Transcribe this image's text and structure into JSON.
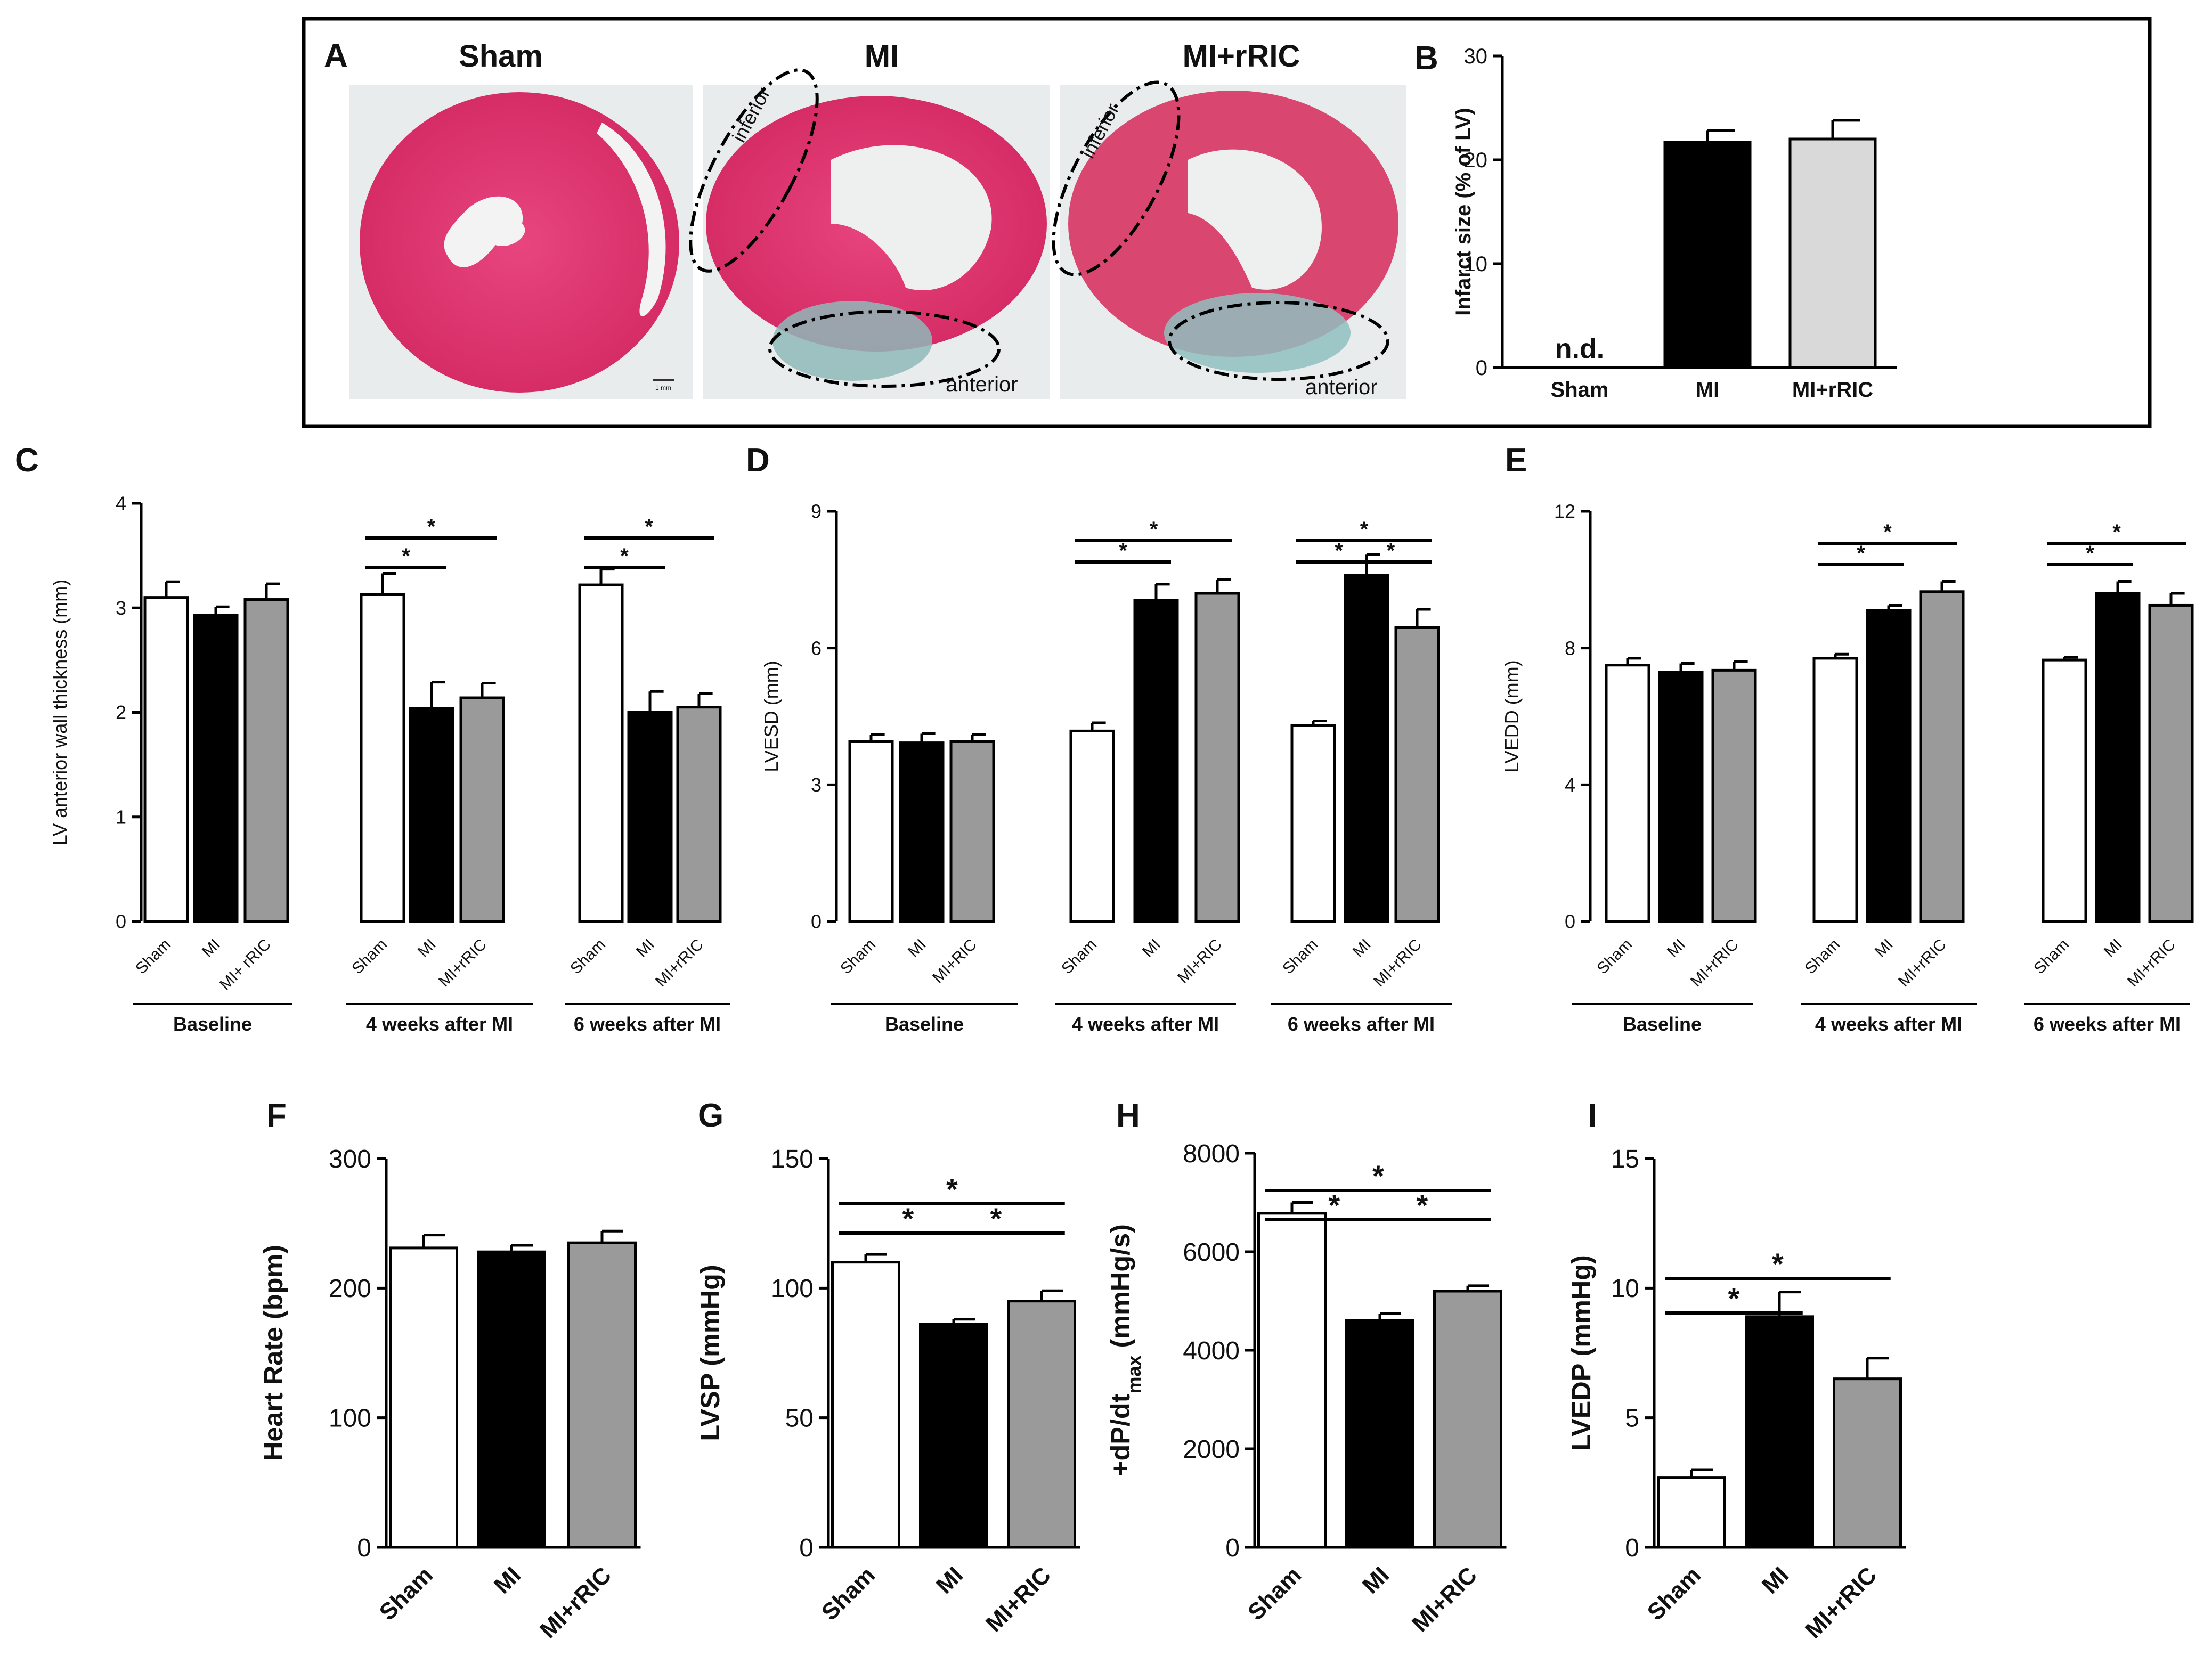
{
  "panel_a": {
    "label": "A",
    "images": [
      {
        "title": "Sham",
        "scale_bar": "1 mm"
      },
      {
        "title": "MI",
        "region_labels": [
          "inferior",
          "anterior"
        ]
      },
      {
        "title": "MI+rRIC",
        "region_labels": [
          "inferior",
          "anterior"
        ]
      }
    ]
  },
  "colors": {
    "sham": "#ffffff",
    "mi": "#000000",
    "rric_b": "#d9d9d9",
    "rric": "#9a9a9a",
    "heart_pink": "#e0336f",
    "fibrosis": "#8fb8b8",
    "bg_slide": "#e9ecec"
  },
  "chart_data": [
    {
      "panel": "B",
      "type": "bar",
      "title": "",
      "ylabel": "Infarct size (% of LV)",
      "ylim": [
        0,
        30
      ],
      "yticks": [
        "0",
        "10",
        "20",
        "30"
      ],
      "categories": [
        "Sham",
        "MI",
        "MI+rRIC"
      ],
      "values": [
        0,
        21.7,
        22.0
      ],
      "errors": [
        0,
        1.1,
        1.8
      ],
      "annotations": [
        "n.d."
      ]
    },
    {
      "panel": "C",
      "type": "bar",
      "ylabel": "LV anterior wall thickness (mm)",
      "ylim": [
        0,
        4
      ],
      "yticks": [
        "0",
        "1",
        "2",
        "3",
        "4"
      ],
      "groups": [
        "Baseline",
        "4 weeks after MI",
        "6 weeks after MI"
      ],
      "categories": [
        [
          "Sham",
          "MI",
          "MI+ rRIC"
        ],
        [
          "Sham",
          "MI",
          "MI+rRIC"
        ],
        [
          "Sham",
          "MI",
          "MI+rRIC"
        ]
      ],
      "values": [
        [
          3.1,
          2.93,
          3.08
        ],
        [
          3.13,
          2.04,
          2.14
        ],
        [
          3.22,
          2.0,
          2.05
        ]
      ],
      "errors": [
        [
          0.15,
          0.08,
          0.15
        ],
        [
          0.2,
          0.25,
          0.14
        ],
        [
          0.15,
          0.2,
          0.13
        ]
      ],
      "significance": [
        "*",
        "*",
        "*",
        "*"
      ]
    },
    {
      "panel": "D",
      "type": "bar",
      "ylabel": "LVESD (mm)",
      "ylim": [
        0,
        9
      ],
      "yticks": [
        "0",
        "3",
        "6",
        "9"
      ],
      "groups": [
        "Baseline",
        "4 weeks after MI",
        "6 weeks after MI"
      ],
      "categories": [
        [
          "Sham",
          "MI",
          "MI+RIC"
        ],
        [
          "Sham",
          "MI",
          "MI+RIC"
        ],
        [
          "Sham",
          "MI",
          "MI+rRIC"
        ]
      ],
      "values": [
        [
          3.95,
          3.92,
          3.95
        ],
        [
          4.18,
          7.05,
          7.2
        ],
        [
          4.3,
          7.6,
          6.45
        ]
      ],
      "errors": [
        [
          0.15,
          0.2,
          0.15
        ],
        [
          0.18,
          0.35,
          0.3
        ],
        [
          0.1,
          0.45,
          0.4
        ]
      ],
      "significance": [
        "*",
        "*",
        "*",
        "*",
        "*"
      ]
    },
    {
      "panel": "E",
      "type": "bar",
      "ylabel": "LVEDD (mm)",
      "ylim": [
        0,
        12
      ],
      "yticks": [
        "0",
        "4",
        "8",
        "12"
      ],
      "groups": [
        "Baseline",
        "4 weeks after MI",
        "6 weeks after MI"
      ],
      "categories": [
        [
          "Sham",
          "MI",
          "MI+rRIC"
        ],
        [
          "Sham",
          "MI",
          "MI+rRIC"
        ],
        [
          "Sham",
          "MI",
          "MI+rRIC"
        ]
      ],
      "values": [
        [
          7.5,
          7.3,
          7.35
        ],
        [
          7.7,
          9.1,
          9.65
        ],
        [
          7.65,
          9.6,
          9.25
        ]
      ],
      "errors": [
        [
          0.2,
          0.25,
          0.25
        ],
        [
          0.12,
          0.15,
          0.3
        ],
        [
          0.08,
          0.35,
          0.35
        ]
      ],
      "significance": [
        "*",
        "*",
        "*",
        "*"
      ]
    },
    {
      "panel": "F",
      "type": "bar",
      "ylabel": "Heart Rate (bpm)",
      "ylim": [
        0,
        300
      ],
      "yticks": [
        "0",
        "100",
        "200",
        "300"
      ],
      "categories": [
        "Sham",
        "MI",
        "MI+rRIC"
      ],
      "values": [
        231,
        228,
        235
      ],
      "errors": [
        10,
        5,
        9
      ]
    },
    {
      "panel": "G",
      "type": "bar",
      "ylabel": "LVSP (mmHg)",
      "ylim": [
        0,
        150
      ],
      "yticks": [
        "0",
        "50",
        "100",
        "150"
      ],
      "categories": [
        "Sham",
        "MI",
        "MI+RIC"
      ],
      "values": [
        110,
        86,
        95
      ],
      "errors": [
        3,
        2,
        4
      ],
      "significance": [
        "*",
        "*",
        "*"
      ]
    },
    {
      "panel": "H",
      "type": "bar",
      "ylabel": "+dP/dtmax (mmHg/s)",
      "ylim": [
        0,
        8000
      ],
      "yticks": [
        "0",
        "2000",
        "4000",
        "6000",
        "8000"
      ],
      "categories": [
        "Sham",
        "MI",
        "MI+RIC"
      ],
      "values": [
        6780,
        4600,
        5200
      ],
      "errors": [
        220,
        140,
        110
      ],
      "significance": [
        "*",
        "*",
        "*"
      ]
    },
    {
      "panel": "I",
      "type": "bar",
      "ylabel": "LVEDP (mmHg)",
      "ylim": [
        0,
        15
      ],
      "yticks": [
        "0",
        "5",
        "10",
        "15"
      ],
      "categories": [
        "Sham",
        "MI",
        "MI+rRIC"
      ],
      "values": [
        2.7,
        8.9,
        6.5
      ],
      "errors": [
        0.3,
        0.95,
        0.8
      ],
      "significance": [
        "*",
        "*"
      ]
    }
  ]
}
